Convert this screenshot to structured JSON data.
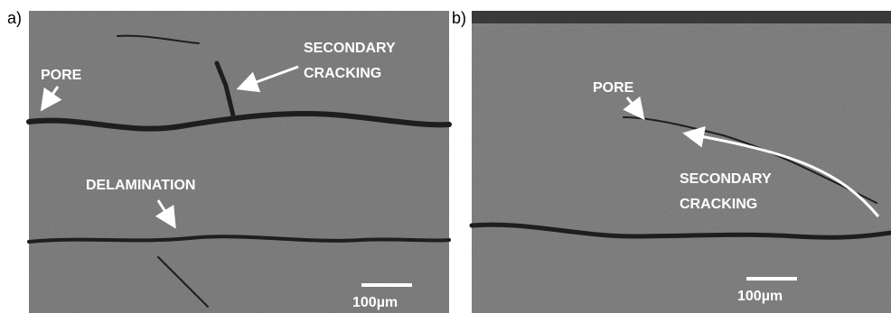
{
  "panels": [
    {
      "label": "a)",
      "annotations": [
        {
          "lines": [
            "PORE"
          ]
        },
        {
          "lines": [
            "SECONDARY",
            "CRACKING"
          ]
        },
        {
          "lines": [
            "DELAMINATION"
          ]
        }
      ],
      "scale_bar": "100µm"
    },
    {
      "label": "b)",
      "annotations": [
        {
          "lines": [
            "PORE"
          ]
        },
        {
          "lines": [
            "SECONDARY",
            "CRACKING"
          ]
        }
      ],
      "scale_bar": "100µm"
    }
  ]
}
